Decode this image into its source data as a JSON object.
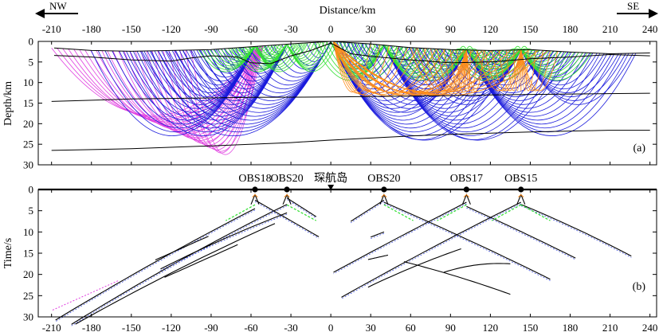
{
  "chart_data": [
    {
      "panel": "a",
      "type": "line",
      "panel_label": "(a)",
      "xlabel": "Distance/km",
      "ylabel": "Depth/km",
      "xlim": [
        -220,
        245
      ],
      "ylim": [
        30,
        0
      ],
      "x_ticks": [
        -210,
        -180,
        -150,
        -120,
        -90,
        -60,
        -30,
        0,
        30,
        60,
        90,
        120,
        150,
        180,
        210,
        240
      ],
      "y_ticks": [
        0,
        5,
        10,
        15,
        20,
        25,
        30
      ],
      "direction_left": "NW",
      "direction_right": "SE",
      "colors": {
        "magenta": "#e040e0",
        "blue": "#1a1adc",
        "green": "#33e033",
        "orange": "#ff8c1a",
        "boundary": "#000000"
      },
      "boundaries": [
        {
          "name": "seafloor",
          "points": [
            [
              -208,
              1.6
            ],
            [
              -180,
              2.2
            ],
            [
              -150,
              2.4
            ],
            [
              -120,
              2.2
            ],
            [
              -90,
              2.0
            ],
            [
              -60,
              1.3
            ],
            [
              -30,
              0.6
            ],
            [
              0,
              0.0
            ],
            [
              30,
              0.6
            ],
            [
              60,
              1.5
            ],
            [
              90,
              2.0
            ],
            [
              120,
              2.2
            ],
            [
              150,
              2.0
            ],
            [
              180,
              2.6
            ],
            [
              210,
              3.0
            ],
            [
              240,
              2.8
            ]
          ]
        },
        {
          "name": "sediment-base",
          "points": [
            [
              -208,
              3.4
            ],
            [
              -180,
              3.8
            ],
            [
              -150,
              4.5
            ],
            [
              -120,
              4.8
            ],
            [
              -105,
              4.0
            ],
            [
              -90,
              3.5
            ],
            [
              -70,
              3.8
            ],
            [
              -60,
              5.2
            ],
            [
              -45,
              5.4
            ],
            [
              -30,
              3.5
            ],
            [
              -15,
              2.2
            ],
            [
              0,
              0.4
            ],
            [
              15,
              3.0
            ],
            [
              30,
              3.6
            ],
            [
              60,
              4.5
            ],
            [
              90,
              5.2
            ],
            [
              120,
              5.0
            ],
            [
              150,
              4.2
            ],
            [
              180,
              3.8
            ],
            [
              210,
              3.2
            ],
            [
              240,
              3.5
            ]
          ]
        },
        {
          "name": "upper-crust-base",
          "points": [
            [
              -210,
              14.6
            ],
            [
              -150,
              14.0
            ],
            [
              -60,
              13.6
            ],
            [
              0,
              13.5
            ],
            [
              60,
              13.3
            ],
            [
              120,
              13.0
            ],
            [
              180,
              12.8
            ],
            [
              240,
              12.6
            ]
          ]
        },
        {
          "name": "moho",
          "points": [
            [
              -210,
              26.5
            ],
            [
              -150,
              26.1
            ],
            [
              -90,
              25.4
            ],
            [
              -30,
              24.6
            ],
            [
              0,
              24.0
            ],
            [
              30,
              23.5
            ],
            [
              60,
              23.0
            ],
            [
              90,
              22.6
            ],
            [
              120,
              22.3
            ],
            [
              150,
              22.0
            ],
            [
              180,
              21.8
            ],
            [
              210,
              21.6
            ],
            [
              240,
              21.6
            ]
          ]
        }
      ]
    },
    {
      "panel": "b",
      "type": "scatter",
      "panel_label": "(b)",
      "ylabel": "Time/s",
      "xlim": [
        -220,
        245
      ],
      "ylim": [
        30,
        0
      ],
      "x_ticks": [
        -210,
        -180,
        -150,
        -120,
        -90,
        -60,
        -30,
        0,
        30,
        60,
        90,
        120,
        150,
        180,
        210,
        240
      ],
      "y_ticks": [
        0,
        5,
        10,
        15,
        20,
        25,
        30
      ],
      "stations": [
        {
          "name": "OBS18",
          "x": -57
        },
        {
          "name": "OBS20",
          "x": -33
        },
        {
          "name": "琛航岛",
          "x": 0
        },
        {
          "name": "OBS20",
          "x": 40
        },
        {
          "name": "OBS17",
          "x": 102
        },
        {
          "name": "OBS15",
          "x": 143
        }
      ],
      "island_marker_x": 0
    }
  ]
}
